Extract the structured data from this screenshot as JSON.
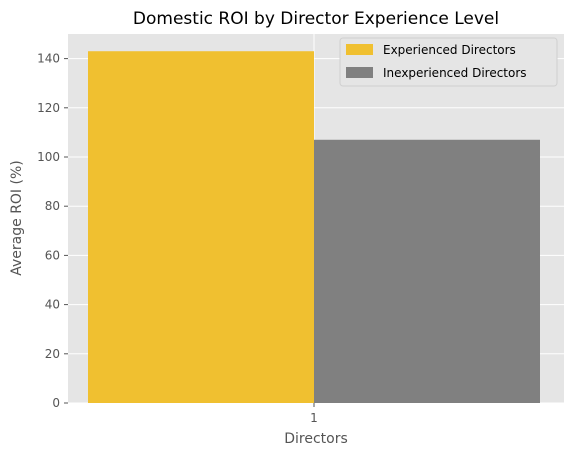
{
  "chart_data": {
    "type": "bar",
    "title": "Domestic ROI by Director Experience Level",
    "xlabel": "Directors",
    "ylabel": "Average ROI (%)",
    "categories": [
      "1"
    ],
    "series": [
      {
        "name": "Experienced Directors",
        "values": [
          143
        ],
        "color": "#f0c030"
      },
      {
        "name": "Inexperienced Directors",
        "values": [
          107
        ],
        "color": "#808080"
      }
    ],
    "ylim": [
      0,
      150
    ],
    "yticks": [
      0,
      20,
      40,
      60,
      80,
      100,
      120,
      140
    ],
    "grid": true,
    "legend_position": "top-right",
    "background": "#e5e5e5"
  }
}
